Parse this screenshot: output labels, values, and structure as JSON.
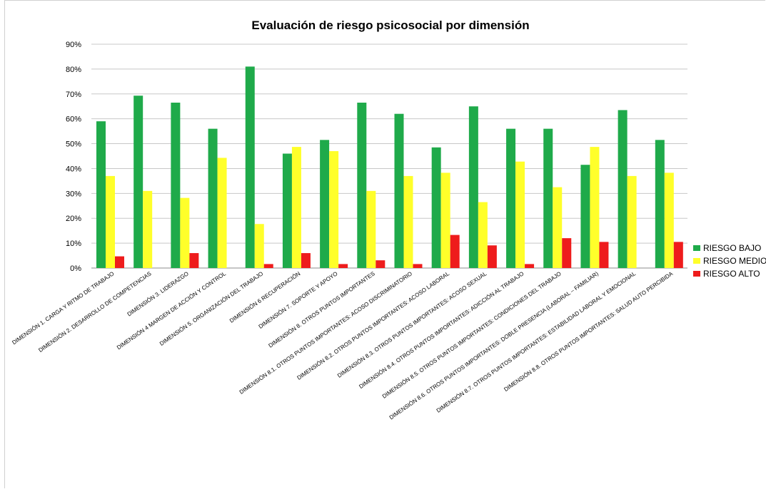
{
  "chart_data": {
    "type": "bar",
    "title": "Evaluación de riesgo psicosocial por dimensión",
    "xlabel": "",
    "ylabel": "",
    "ylim": [
      0,
      90
    ],
    "yticks": [
      "0%",
      "10%",
      "20%",
      "30%",
      "40%",
      "50%",
      "60%",
      "70%",
      "80%",
      "90%"
    ],
    "grid": "horizontal",
    "legend_position": "right",
    "categories": [
      "DIMENSIÓN 1. CARGA Y RITMO DE TRABAJO",
      "DIMENSIÓN 2. DESARROLLO DE COMPETENCIAS",
      "DIMENSIÓN 3. LIDERAZGO",
      "DIMENSIÓN 4 MARGEN DE ACCIÓN Y CONTROL",
      "DIMENSIÓN 5. ORGANIZACIÓN DEL TRABAJO",
      "DIMENSIÓN 6 RECUPERACIÓN",
      "DIMENSIÓN 7. SOPORTE Y APOYO",
      "DIMENSIÓN 8. OTROS PUNTOS IMPORTANTES",
      "DIMENSIÓN 8.1. OTROS PUNTOS IMPORTANTES: ACOSO DISCRIMINATORIO",
      "DIMENSIÓN 8.2. OTROS PUNTOS IMPORTANTES: ACOSO LABORAL",
      "DIMENSIÓN 8.3. OTROS PUNTOS IMPORTANTES: ACOSO SEXUAL",
      "DIMENSIÓN 8.4. OTROS PUNTOS IMPORTANTES: ADICCIÓN AL TRABAJO",
      "DIMENSIÓN 8.5. OTROS PUNTOS IMPORTANTES: CONDICIONES DEL TRABAJO",
      "DIMENSIÓN 8.6. OTROS PUNTOS IMPORTANTES: DOBLE PRESENCIA (LABORAL – FAMILIAR)",
      "DIMENSIÓN 8.7. OTROS PUNTOS IMPORTANTES: ESTABILIDAD LABORAL Y EMOCIONAL",
      "DIMENSIÓN 8.8. OTROS PUNTOS IMPORTANTES: SALUD AUTO PERCIBIDA"
    ],
    "series": [
      {
        "name": "RIESGO BAJO",
        "color": "#1faa4a",
        "values": [
          59,
          69.3,
          66.5,
          56,
          81,
          46,
          51.5,
          66.5,
          62,
          48.5,
          65,
          56,
          56,
          41.5,
          63.5,
          51.5
        ]
      },
      {
        "name": "RIESGO MEDIO",
        "color": "#ffff2a",
        "values": [
          37,
          31,
          28.2,
          44.3,
          17.7,
          48.7,
          47,
          31,
          37,
          38.3,
          26.5,
          42.8,
          32.5,
          48.7,
          37,
          38.3
        ]
      },
      {
        "name": "RIESGO ALTO",
        "color": "#ee1c1c",
        "values": [
          4.7,
          0,
          6,
          0,
          1.6,
          6,
          1.6,
          3.1,
          1.6,
          13.3,
          9.1,
          1.6,
          12,
          10.5,
          0,
          10.5
        ]
      }
    ]
  }
}
